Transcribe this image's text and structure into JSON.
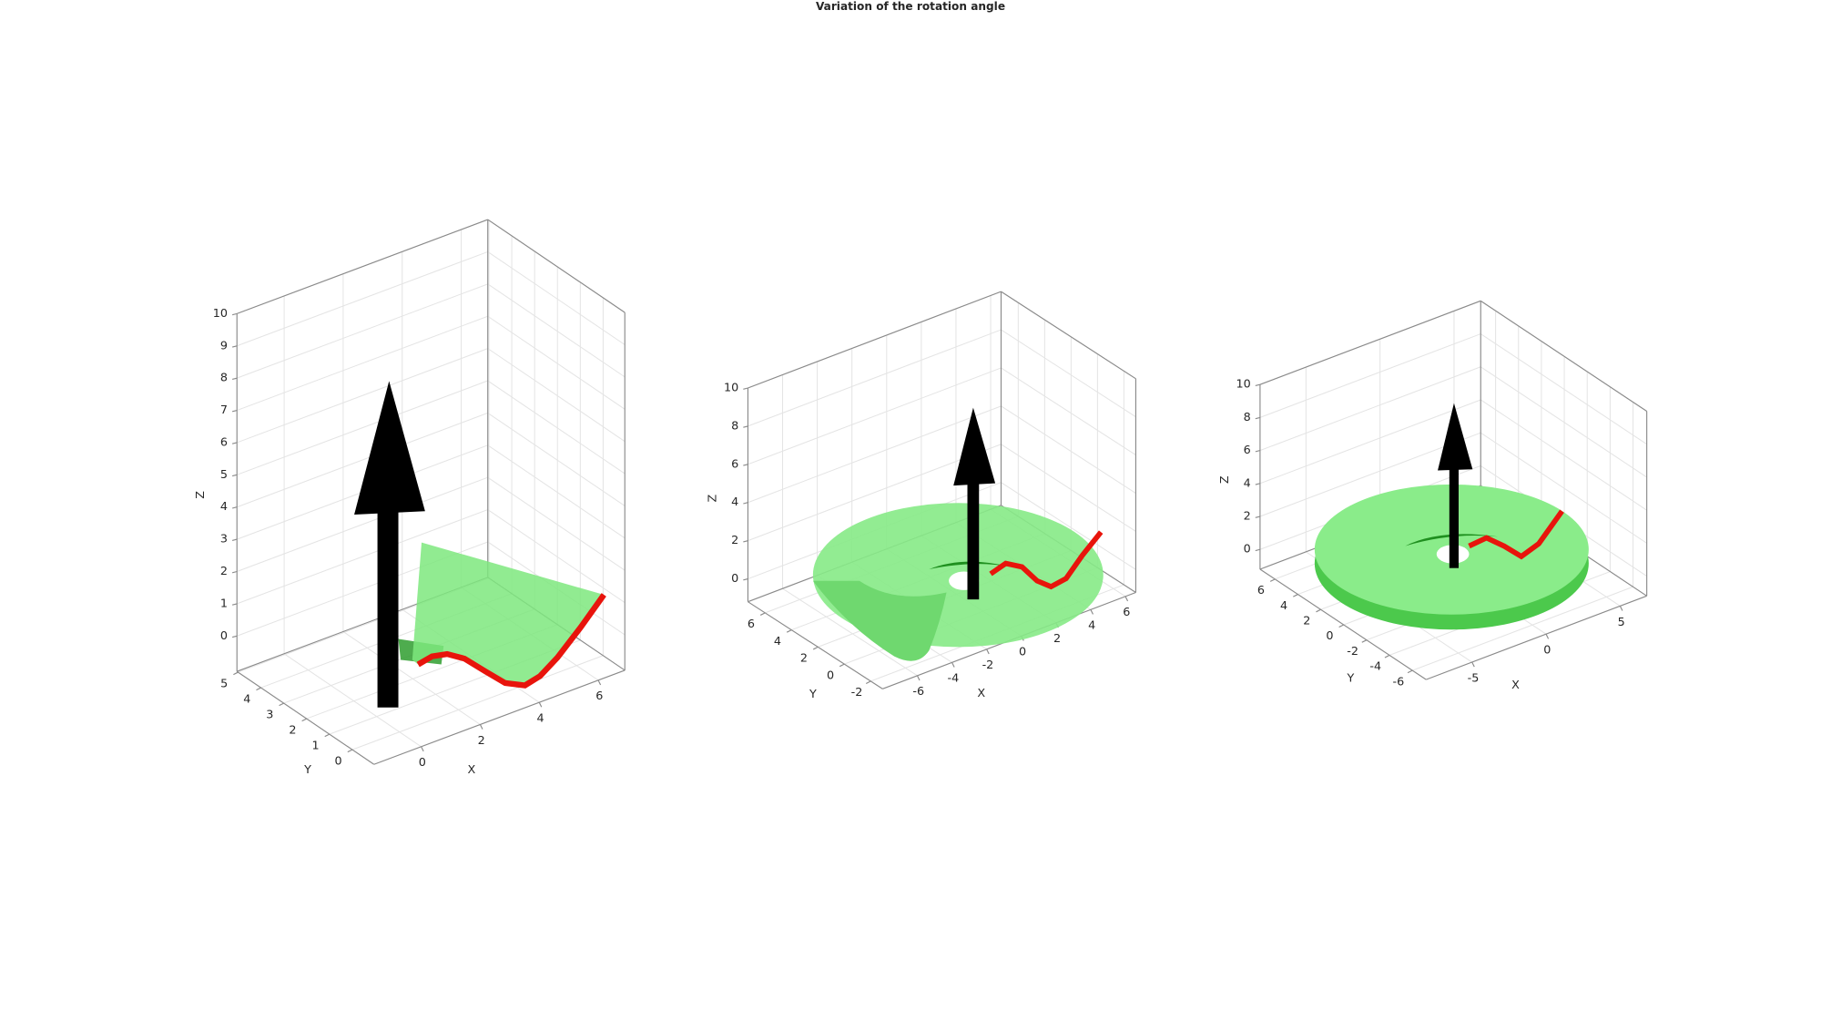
{
  "title": "Variation of the rotation angle",
  "chart_data": [
    {
      "type": "surface3d",
      "xlabel": "X",
      "ylabel": "Y",
      "zlabel": "Z",
      "grid": true,
      "xlim": [
        -1.6,
        6.9
      ],
      "ylim": [
        -0.95,
        5.05
      ],
      "zlim": [
        -1.1,
        10
      ],
      "xticks": [
        0,
        2,
        4,
        6
      ],
      "yticks": [
        0,
        1,
        2,
        3,
        4,
        5
      ],
      "zticks": [
        0,
        1,
        2,
        3,
        4,
        5,
        6,
        7,
        8,
        9,
        10
      ]
    },
    {
      "type": "surface3d",
      "xlabel": "X",
      "ylabel": "Y",
      "zlabel": "Z",
      "grid": true,
      "xlim": [
        -8,
        6.6
      ],
      "ylim": [
        -2.9,
        7.3
      ],
      "zlim": [
        -1.2,
        10
      ],
      "xticks": [
        -6,
        -4,
        -2,
        0,
        2,
        4,
        6
      ],
      "yticks": [
        -2,
        0,
        2,
        4,
        6
      ],
      "zticks": [
        0,
        2,
        4,
        6,
        8,
        10
      ]
    },
    {
      "type": "surface3d",
      "xlabel": "X",
      "ylabel": "Y",
      "zlabel": "Z",
      "grid": true,
      "xlim": [
        -8.1,
        6.8
      ],
      "ylim": [
        -7.2,
        7.3
      ],
      "zlim": [
        -1.2,
        10
      ],
      "xticks": [
        -5,
        0,
        5
      ],
      "yticks": [
        -6,
        -4,
        -2,
        0,
        2,
        4,
        6
      ],
      "zticks": [
        0,
        2,
        4,
        6,
        8,
        10
      ]
    }
  ]
}
